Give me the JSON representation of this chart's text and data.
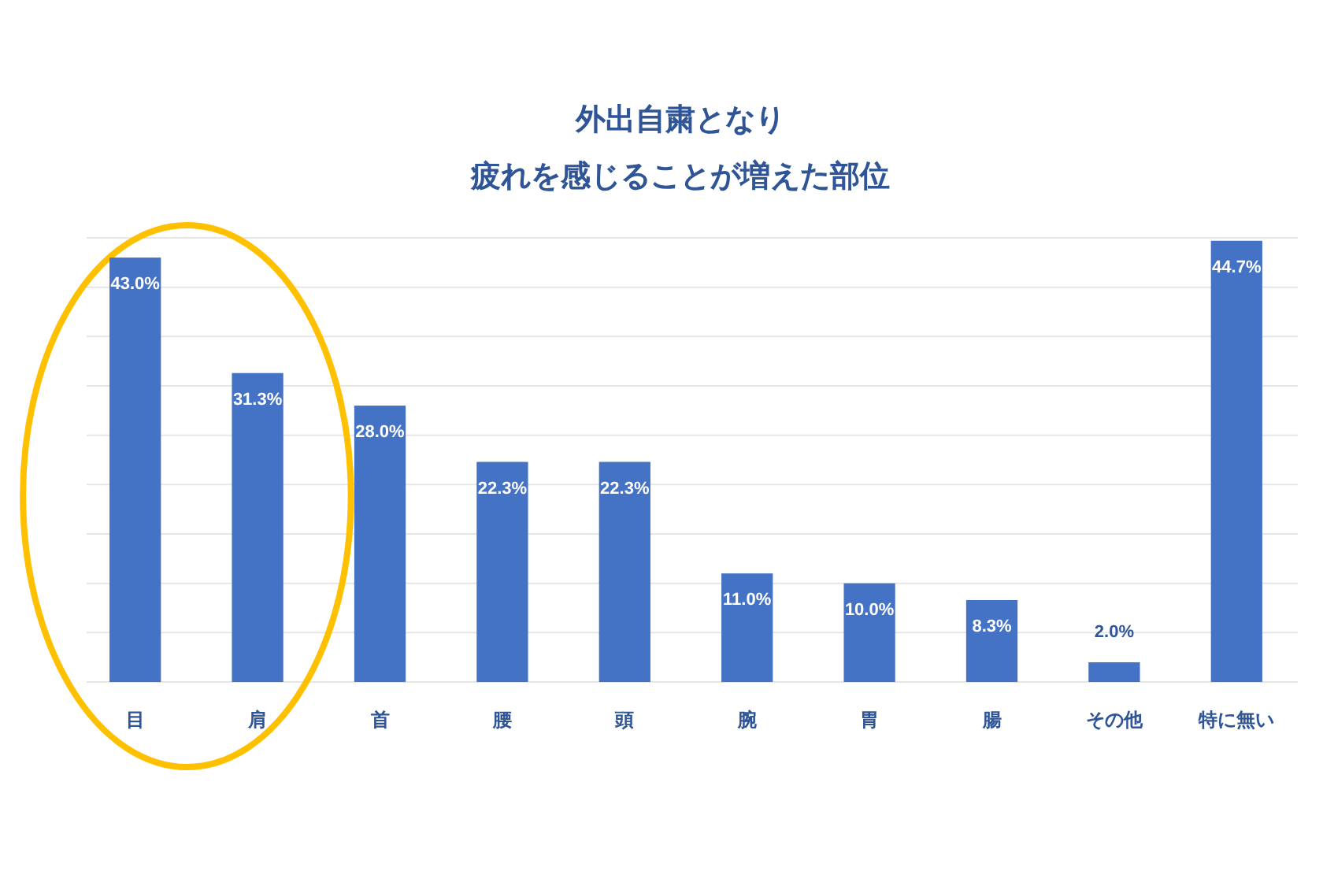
{
  "chart_data": {
    "type": "bar",
    "title": "外出自粛となり",
    "subtitle": "疲れを感じることが増えた部位",
    "categories": [
      "目",
      "肩",
      "首",
      "腰",
      "頭",
      "腕",
      "胃",
      "腸",
      "その他",
      "特に無い"
    ],
    "values": [
      43.0,
      31.3,
      28.0,
      22.3,
      22.3,
      11.0,
      10.0,
      8.3,
      2.0,
      44.7
    ],
    "value_labels": [
      "43.0%",
      "31.3%",
      "28.0%",
      "22.3%",
      "22.3%",
      "11.0%",
      "10.0%",
      "8.3%",
      "2.0%",
      "44.7%"
    ],
    "color": "#4472c4",
    "ylim": [
      0,
      45
    ],
    "yticks": [
      {
        "value": 0,
        "label": null
      },
      {
        "value": 5,
        "label": null
      },
      {
        "value": 10,
        "label": null
      },
      {
        "value": 15,
        "label": null
      },
      {
        "value": 20,
        "label": null
      },
      {
        "value": 25,
        "label": null
      },
      {
        "value": 30,
        "label": null
      },
      {
        "value": 35,
        "label": null
      },
      {
        "value": 40,
        "label": null
      },
      {
        "value": 45,
        "label": null
      }
    ],
    "grid": "y",
    "tick_labels": "x"
  }
}
